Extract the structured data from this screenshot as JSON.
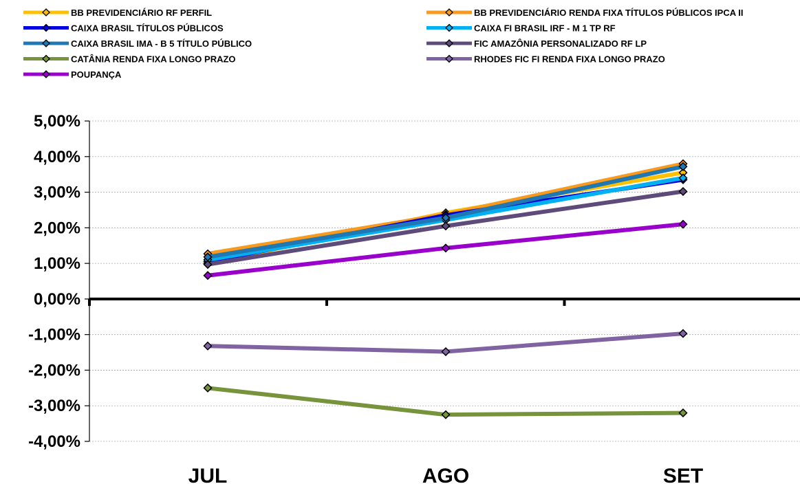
{
  "chart_data": {
    "type": "line",
    "categories": [
      "JUL",
      "AGO",
      "SET"
    ],
    "ylim": [
      -4,
      5
    ],
    "y_ticks": [
      5,
      4,
      3,
      2,
      1,
      0,
      -1,
      -2,
      -3,
      -4
    ],
    "y_tick_labels": [
      "5,00%",
      "4,00%",
      "3,00%",
      "2,00%",
      "1,00%",
      "0,00%",
      "-1,00%",
      "-2,00%",
      "-3,00%",
      "-4,00%"
    ],
    "grid": true,
    "legend_position": "top",
    "series": [
      {
        "name": "BB PREVIDENCIÁRIO RF PERFIL",
        "color": "#FFC000",
        "values": [
          1.0,
          2.42,
          3.55
        ]
      },
      {
        "name": "BB PREVIDENCIÁRIO RENDA FIXA TÍTULOS PÚBLICOS IPCA II",
        "color": "#F79A1E",
        "values": [
          1.27,
          2.37,
          3.8
        ]
      },
      {
        "name": "CAIXA BRASIL TÍTULOS PÚBLICOS",
        "color": "#0000E0",
        "values": [
          1.05,
          2.35,
          3.35
        ]
      },
      {
        "name": "CAIXA FI BRASIL IRF - M 1 TP RF",
        "color": "#00B0F0",
        "values": [
          1.1,
          2.22,
          3.4
        ]
      },
      {
        "name": "CAIXA BRASIL IMA - B 5 TÍTULO PÚBLICO",
        "color": "#1F77B4",
        "values": [
          1.18,
          2.28,
          3.72
        ]
      },
      {
        "name": "FIC AMAZÔNIA PERSONALIZADO RF LP",
        "color": "#5E4B7A",
        "values": [
          0.97,
          2.05,
          3.02
        ]
      },
      {
        "name": "CATÂNIA RENDA FIXA LONGO PRAZO",
        "color": "#77933C",
        "values": [
          -2.5,
          -3.25,
          -3.2
        ]
      },
      {
        "name": "RHODES FIC FI RENDA FIXA LONGO PRAZO",
        "color": "#8064A2",
        "values": [
          -1.32,
          -1.48,
          -0.97
        ]
      },
      {
        "name": "POUPANÇA",
        "color": "#9900CC",
        "values": [
          0.66,
          1.43,
          2.1
        ]
      }
    ]
  }
}
